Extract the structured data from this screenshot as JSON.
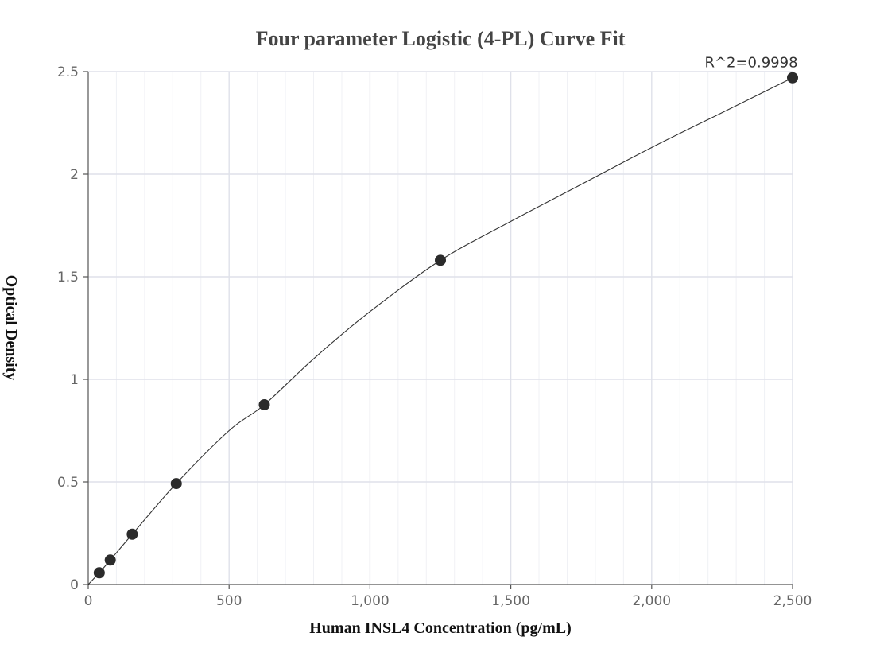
{
  "chart_data": {
    "type": "scatter",
    "title": "Four parameter Logistic (4-PL) Curve Fit",
    "xlabel": "Human INSL4 Concentration (pg/mL)",
    "ylabel": "Optical Density",
    "xlim": [
      0,
      2500
    ],
    "ylim": [
      0,
      2.5
    ],
    "x_ticks": [
      0,
      500,
      1000,
      1500,
      2000,
      2500
    ],
    "x_tick_labels": [
      "0",
      "500",
      "1,000",
      "1,500",
      "2,000",
      "2,500"
    ],
    "y_ticks": [
      0,
      0.5,
      1,
      1.5,
      2,
      2.5
    ],
    "y_tick_labels": [
      "0",
      "0.5",
      "1",
      "1.5",
      "2",
      "2.5"
    ],
    "grid": true,
    "series": [
      {
        "x": [
          39.06,
          78.13,
          156.25,
          312.5,
          625,
          1250,
          2500
        ],
        "y": [
          0.057,
          0.119,
          0.245,
          0.492,
          0.876,
          1.58,
          2.47
        ]
      }
    ],
    "fit_curve": {
      "x": [
        0,
        39.06,
        78.13,
        156.25,
        312.5,
        500,
        625,
        800,
        1000,
        1250,
        1500,
        1750,
        2000,
        2250,
        2500
      ],
      "y": [
        0.0,
        0.057,
        0.119,
        0.245,
        0.492,
        0.75,
        0.876,
        1.1,
        1.33,
        1.58,
        1.77,
        1.95,
        2.13,
        2.3,
        2.47
      ]
    },
    "annotations": [
      {
        "text": "R^2=0.9998",
        "x": 2500,
        "y": 2.47
      }
    ]
  }
}
